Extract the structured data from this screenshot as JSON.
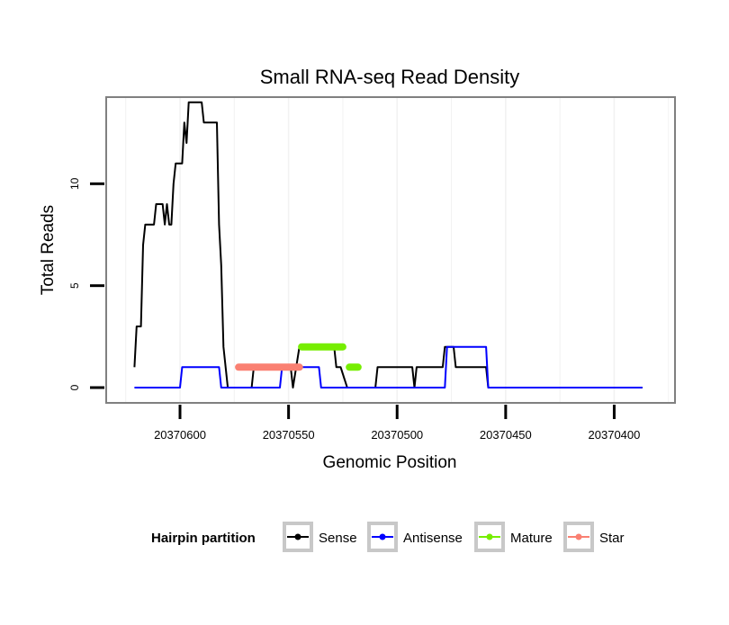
{
  "chart_data": {
    "type": "line",
    "title": "Small RNA-seq Read Density",
    "xlabel": "Genomic Position",
    "ylabel": "Total Reads",
    "x_reversed": true,
    "xlim": [
      20370634,
      20370372
    ],
    "ylim": [
      -0.75,
      14.25
    ],
    "x_ticks": [
      20370600,
      20370550,
      20370500,
      20370450,
      20370400
    ],
    "x_tick_labels": [
      "20370600",
      "20370550",
      "20370500",
      "20370450",
      "20370400"
    ],
    "y_ticks": [
      0,
      5,
      10
    ],
    "y_tick_labels": [
      "0",
      "5",
      "10"
    ],
    "grid": true,
    "legend": {
      "title": "Hairpin partition",
      "position": "bottom",
      "entries": [
        "Sense",
        "Antisense",
        "Mature",
        "Star"
      ]
    },
    "series": [
      {
        "name": "Sense",
        "color": "#000000",
        "points": [
          [
            20370621,
            1
          ],
          [
            20370620,
            3
          ],
          [
            20370618,
            3
          ],
          [
            20370617,
            7
          ],
          [
            20370616,
            8
          ],
          [
            20370612,
            8
          ],
          [
            20370611,
            9
          ],
          [
            20370608,
            9
          ],
          [
            20370607,
            8
          ],
          [
            20370606,
            9
          ],
          [
            20370605,
            8
          ],
          [
            20370604,
            8
          ],
          [
            20370603,
            10
          ],
          [
            20370602,
            11
          ],
          [
            20370599,
            11
          ],
          [
            20370598,
            13
          ],
          [
            20370597,
            12
          ],
          [
            20370596,
            14
          ],
          [
            20370590,
            14
          ],
          [
            20370589,
            13
          ],
          [
            20370583,
            13
          ],
          [
            20370582,
            8
          ],
          [
            20370581,
            6
          ],
          [
            20370580,
            2
          ],
          [
            20370578,
            0
          ],
          [
            20370567,
            0
          ],
          [
            20370566,
            1
          ],
          [
            20370555,
            1
          ],
          [
            20370554,
            1
          ],
          [
            20370549,
            1
          ],
          [
            20370548,
            0
          ],
          [
            20370545,
            2
          ],
          [
            20370529,
            2
          ],
          [
            20370528,
            1
          ],
          [
            20370526,
            1
          ],
          [
            20370523,
            0
          ],
          [
            20370510,
            0
          ],
          [
            20370509,
            1
          ],
          [
            20370493,
            1
          ],
          [
            20370492,
            0
          ],
          [
            20370491,
            1
          ],
          [
            20370479,
            1
          ],
          [
            20370478,
            2
          ],
          [
            20370474,
            2
          ],
          [
            20370473,
            1
          ],
          [
            20370459,
            1
          ],
          [
            20370458,
            0
          ],
          [
            20370387,
            0
          ]
        ]
      },
      {
        "name": "Antisense",
        "color": "#0000ff",
        "points": [
          [
            20370621,
            0
          ],
          [
            20370600,
            0
          ],
          [
            20370599,
            1
          ],
          [
            20370582,
            1
          ],
          [
            20370581,
            0
          ],
          [
            20370554,
            0
          ],
          [
            20370553,
            1
          ],
          [
            20370536,
            1
          ],
          [
            20370535,
            0
          ],
          [
            20370478,
            0
          ],
          [
            20370477,
            2
          ],
          [
            20370459,
            2
          ],
          [
            20370458,
            0
          ],
          [
            20370387,
            0
          ]
        ]
      },
      {
        "name": "Mature",
        "color": "#76ee00",
        "points": [
          [
            20370544,
            2
          ],
          [
            20370525,
            2
          ]
        ],
        "extra_segments": [
          [
            [
              20370522,
              1
            ],
            [
              20370518,
              1
            ]
          ]
        ]
      },
      {
        "name": "Star",
        "color": "#fa8072",
        "points": [
          [
            20370573,
            1
          ],
          [
            20370545,
            1
          ]
        ]
      }
    ]
  }
}
